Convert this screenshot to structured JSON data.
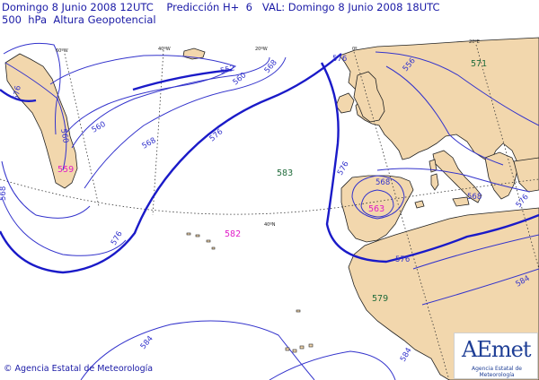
{
  "header": {
    "valid_line": "Domingo 8 Junio 2008 12UTC    Predicción H+  6   VAL: Domingo 8 Junio 2008 18UTC",
    "field_line": "500  hPa  Altura Geopotencial"
  },
  "graticule_labels": {
    "lon_60w": "60ºW",
    "lon_40w": "40ºW",
    "lon_20w": "20ºW",
    "lon_0": "0º",
    "lon_20e": "20ºE",
    "lat_40n": "40ºN"
  },
  "contour_labels": {
    "c552": "552",
    "c560_west": "560",
    "c560_north": "560",
    "c560_mid": "560",
    "c568_west": "568",
    "c568_north": "568",
    "c568_mid": "568",
    "c576_west": "576",
    "c576_north": "576",
    "c576_center": "576",
    "c576_iberia": "576",
    "c576_east": "576",
    "c576_south": "576",
    "c568_east": "568",
    "c568_iberia": "568",
    "c584_south": "584",
    "c584_se": "584",
    "c584_edge": "584",
    "c576_edge": "576",
    "c556_top": "556"
  },
  "centers": {
    "low_west": "559",
    "high_atlantic": "583",
    "high_south": "582",
    "low_iberia": "563",
    "high_africa": "579",
    "high_europe": "571"
  },
  "colors": {
    "text": "#1a1aa6",
    "contour": "#3333cc",
    "land": "#f2d7ad",
    "coast": "#222222",
    "low_label": "#e01cc8",
    "high_label": "#1f6b3a"
  },
  "footer": {
    "credit": "© Agencia Estatal de Meteorología"
  },
  "logo": {
    "brand": "AEmet",
    "subtitle": "Agencia Estatal de Meteorología"
  }
}
